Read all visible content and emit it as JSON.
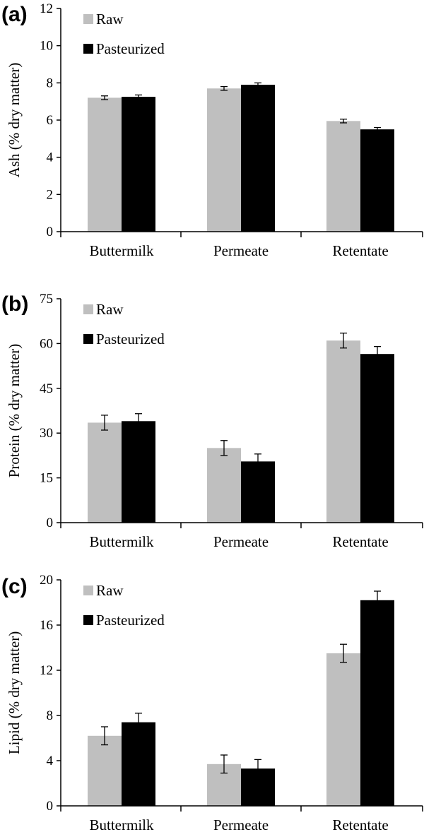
{
  "chart_data": [
    {
      "type": "bar",
      "panel": "(a)",
      "categories": [
        "Buttermilk",
        "Permeate",
        "Retentate"
      ],
      "ylabel": "Ash (% dry matter)",
      "ylim": [
        0,
        12
      ],
      "yticks": [
        0,
        2,
        4,
        6,
        8,
        10,
        12
      ],
      "series": [
        {
          "name": "Raw",
          "color": "#bfbfbf",
          "values": [
            7.2,
            7.7,
            5.95
          ],
          "errors": [
            0.1,
            0.1,
            0.1
          ]
        },
        {
          "name": "Pasteurized",
          "color": "#000000",
          "values": [
            7.25,
            7.9,
            5.5
          ],
          "errors": [
            0.1,
            0.1,
            0.1
          ]
        }
      ]
    },
    {
      "type": "bar",
      "panel": "(b)",
      "categories": [
        "Buttermilk",
        "Permeate",
        "Retentate"
      ],
      "ylabel": "Protein (% dry matter)",
      "ylim": [
        0,
        75
      ],
      "yticks": [
        0,
        15,
        30,
        45,
        60,
        75
      ],
      "series": [
        {
          "name": "Raw",
          "color": "#bfbfbf",
          "values": [
            33.5,
            25.0,
            61.0
          ],
          "errors": [
            2.5,
            2.5,
            2.5
          ]
        },
        {
          "name": "Pasteurized",
          "color": "#000000",
          "values": [
            34.0,
            20.5,
            56.5
          ],
          "errors": [
            2.5,
            2.5,
            2.5
          ]
        }
      ]
    },
    {
      "type": "bar",
      "panel": "(c)",
      "categories": [
        "Buttermilk",
        "Permeate",
        "Retentate"
      ],
      "ylabel": "Lipid  (% dry matter)",
      "ylim": [
        0,
        20
      ],
      "yticks": [
        0,
        4,
        8,
        12,
        16,
        20
      ],
      "series": [
        {
          "name": "Raw",
          "color": "#bfbfbf",
          "values": [
            6.2,
            3.7,
            13.5
          ],
          "errors": [
            0.8,
            0.8,
            0.8
          ]
        },
        {
          "name": "Pasteurized",
          "color": "#000000",
          "values": [
            7.4,
            3.3,
            18.2
          ],
          "errors": [
            0.8,
            0.8,
            0.8
          ]
        }
      ]
    }
  ]
}
